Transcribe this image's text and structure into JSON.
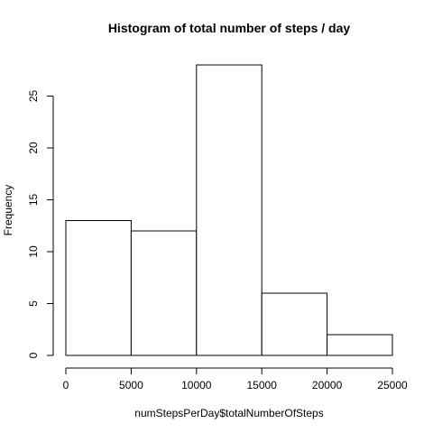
{
  "chart_data": {
    "type": "bar",
    "title": "Histogram of total number of steps / day",
    "xlabel": "numStepsPerDay$totalNumberOfSteps",
    "ylabel": "Frequency",
    "bins": [
      {
        "from": 0,
        "to": 5000,
        "count": 13
      },
      {
        "from": 5000,
        "to": 10000,
        "count": 12
      },
      {
        "from": 10000,
        "to": 15000,
        "count": 28
      },
      {
        "from": 15000,
        "to": 20000,
        "count": 6
      },
      {
        "from": 20000,
        "to": 25000,
        "count": 2
      }
    ],
    "xlim": [
      0,
      25000
    ],
    "ylim": [
      0,
      28
    ],
    "x_ticks": [
      0,
      5000,
      10000,
      15000,
      20000,
      25000
    ],
    "y_ticks": [
      0,
      5,
      10,
      15,
      20,
      25
    ],
    "grid": false,
    "legend": "none"
  }
}
